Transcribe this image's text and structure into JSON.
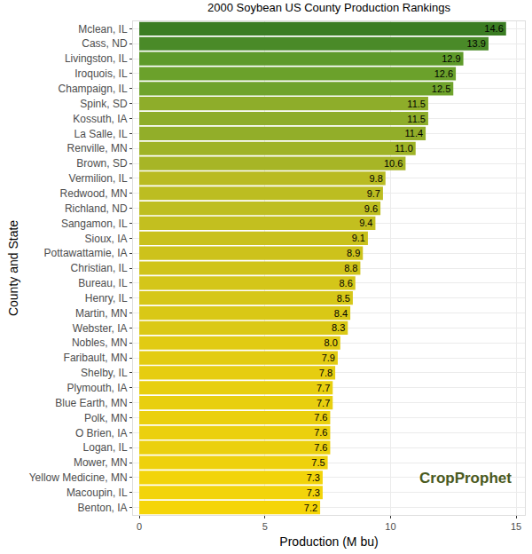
{
  "chart_data": {
    "type": "bar",
    "orientation": "horizontal",
    "title": "2000 Soybean US County Production Rankings",
    "x_label": "Production (M bu)",
    "y_label": "County and State",
    "categories": [
      "Mclean, IL",
      "Cass, ND",
      "Livingston, IL",
      "Iroquois, IL",
      "Champaign, IL",
      "Spink, SD",
      "Kossuth, IA",
      "La Salle, IL",
      "Renville, MN",
      "Brown, SD",
      "Vermilion, IL",
      "Redwood, MN",
      "Richland, ND",
      "Sangamon, IL",
      "Sioux, IA",
      "Pottawattamie, IA",
      "Christian, IL",
      "Bureau, IL",
      "Henry, IL",
      "Martin, MN",
      "Webster, IA",
      "Nobles, MN",
      "Faribault, MN",
      "Shelby, IL",
      "Plymouth, IA",
      "Blue Earth, MN",
      "Polk, MN",
      "O Brien, IA",
      "Logan, IL",
      "Mower, MN",
      "Yellow Medicine, MN",
      "Macoupin, IL",
      "Benton, IA"
    ],
    "values": [
      14.6,
      13.9,
      12.9,
      12.6,
      12.5,
      11.5,
      11.5,
      11.4,
      11.0,
      10.6,
      9.8,
      9.7,
      9.6,
      9.4,
      9.1,
      8.9,
      8.8,
      8.6,
      8.5,
      8.4,
      8.3,
      8.0,
      7.9,
      7.8,
      7.7,
      7.7,
      7.6,
      7.6,
      7.6,
      7.5,
      7.3,
      7.3,
      7.2
    ],
    "value_labels": [
      "14.6",
      "13.9",
      "12.9",
      "12.6",
      "12.5",
      "11.5",
      "11.5",
      "11.4",
      "11.0",
      "10.6",
      "9.8",
      "9.7",
      "9.6",
      "9.4",
      "9.1",
      "8.9",
      "8.8",
      "8.6",
      "8.5",
      "8.4",
      "8.3",
      "8.0",
      "7.9",
      "7.8",
      "7.7",
      "7.7",
      "7.6",
      "7.6",
      "7.6",
      "7.5",
      "7.3",
      "7.3",
      "7.2"
    ],
    "colors": [
      "#3B7D23",
      "#4A8A28",
      "#5E9A2A",
      "#6BA12B",
      "#6FA32C",
      "#8EAD2A",
      "#8EAD2A",
      "#92AE29",
      "#9FB327",
      "#A7B526",
      "#B9BB22",
      "#BCBD21",
      "#BEBE21",
      "#C3BF1F",
      "#C9C11D",
      "#CDC21B",
      "#D0C41A",
      "#D4C619",
      "#D6C718",
      "#D9C816",
      "#DBC916",
      "#E1CB13",
      "#E3CC12",
      "#E6CD10",
      "#E8CF0F",
      "#E8CF0F",
      "#EBD00E",
      "#EBD00E",
      "#EBD00E",
      "#EED10C",
      "#F2D40A",
      "#F2D40A",
      "#F5D508"
    ],
    "xlim": [
      -0.25,
      15.35
    ],
    "xticks": [
      0,
      5,
      10,
      15
    ],
    "grid": true,
    "data_labels": true,
    "annotations": [
      "CropProphet"
    ]
  }
}
